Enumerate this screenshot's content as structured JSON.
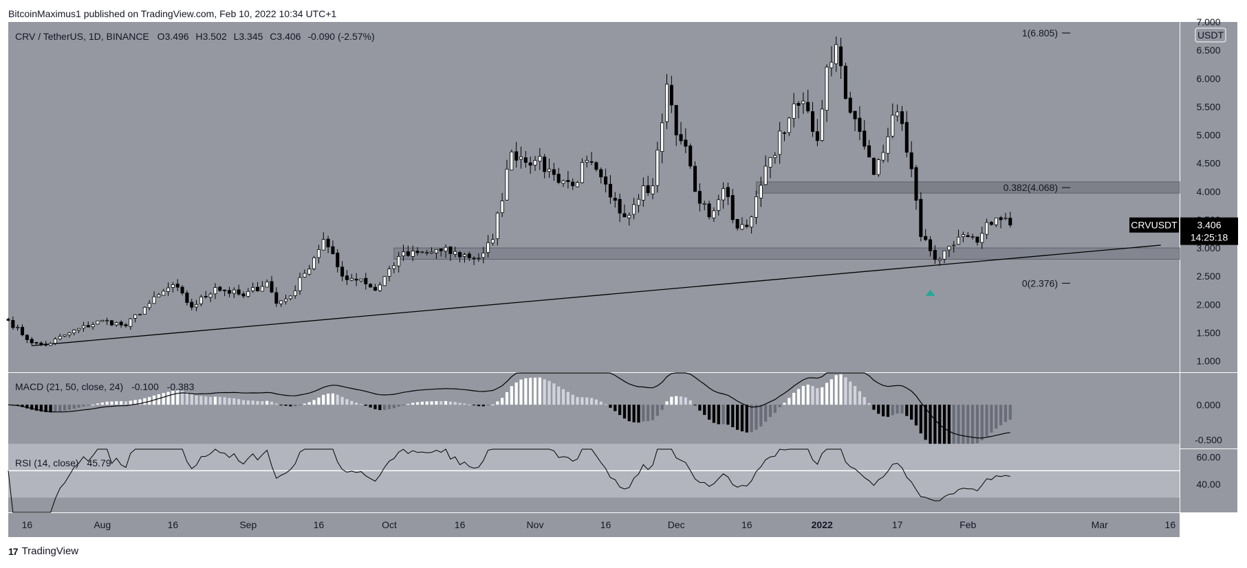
{
  "publisher_line": "BitcoinMaximus1 published on TradingView.com, Feb 10, 2022 10:34 UTC+1",
  "footer_brand": "TradingView",
  "footer_logo": "17",
  "colors": {
    "pane_bg": "#9598a1",
    "rsi_band": "#b2b5be",
    "bull_body": "#ffffff",
    "bear_body": "#000000",
    "wick": "#000000",
    "macd_line": "#000000",
    "hist_up_strong": "#ffffff",
    "hist_up_weak": "#d1d4dc",
    "hist_down_strong": "#000000",
    "hist_down_weak": "#6a6d78",
    "support_band": "#838690",
    "resistance_band": "#7e8089",
    "arrow": "#26a69a",
    "price_tag_bg": "#000000"
  },
  "chart_data": {
    "type": "candlestick",
    "symbol_line": {
      "pair": "CRV / TetherUS, 1D, BINANCE",
      "o_label": "O",
      "o": "3.496",
      "h_label": "H",
      "h": "3.502",
      "l_label": "L",
      "l": "3.345",
      "c_label": "C",
      "c": "3.406",
      "change": "-0.090 (-2.57%)"
    },
    "currency_badge": "USDT",
    "price_tag": {
      "label": "CRVUSDT",
      "value": "3.406",
      "countdown": "14:25:18",
      "price": 3.406
    },
    "y_axis": {
      "min": 0.8,
      "max": 7.0,
      "ticks": [
        "7.000",
        "6.500",
        "6.000",
        "5.500",
        "5.000",
        "4.500",
        "4.000",
        "3.500",
        "3.000",
        "2.500",
        "2.000",
        "1.500",
        "1.000"
      ]
    },
    "x_axis": {
      "start_date": "2021-07-12",
      "end_date": "2022-03-18",
      "labels": [
        {
          "text": "16",
          "date": "2021-07-16"
        },
        {
          "text": "Aug",
          "date": "2021-08-01"
        },
        {
          "text": "16",
          "date": "2021-08-16"
        },
        {
          "text": "Sep",
          "date": "2021-09-01"
        },
        {
          "text": "16",
          "date": "2021-09-16"
        },
        {
          "text": "Oct",
          "date": "2021-10-01"
        },
        {
          "text": "16",
          "date": "2021-10-16"
        },
        {
          "text": "Nov",
          "date": "2021-11-01"
        },
        {
          "text": "16",
          "date": "2021-11-16"
        },
        {
          "text": "Dec",
          "date": "2021-12-01"
        },
        {
          "text": "16",
          "date": "2021-12-16"
        },
        {
          "text": "2022",
          "date": "2022-01-01"
        },
        {
          "text": "17",
          "date": "2022-01-17"
        },
        {
          "text": "Feb",
          "date": "2022-02-01"
        },
        {
          "text": "Mar",
          "date": "2022-03-01"
        },
        {
          "text": "16",
          "date": "2022-03-16"
        }
      ]
    },
    "fib_levels": [
      {
        "label": "1(6.805)",
        "price": 6.805
      },
      {
        "label": "0.382(4.068)",
        "price": 4.068
      },
      {
        "label": "0(2.376)",
        "price": 2.376
      }
    ],
    "zones": [
      {
        "name": "support",
        "from_date": "2021-10-02",
        "to_date": "2022-03-18",
        "low": 2.8,
        "high": 3.0
      },
      {
        "name": "resistance",
        "from_date": "2021-12-18",
        "to_date": "2022-03-18",
        "low": 3.97,
        "high": 4.17
      }
    ],
    "trendline": {
      "from_date": "2021-07-17",
      "from_price": 1.27,
      "to_date": "2022-03-14",
      "to_price": 3.05
    },
    "signal_arrow": {
      "date": "2022-01-24",
      "price": 2.2
    },
    "anchor_closes": [
      [
        "2021-07-12",
        1.72
      ],
      [
        "2021-07-17",
        1.32
      ],
      [
        "2021-07-20",
        1.28
      ],
      [
        "2021-07-25",
        1.5
      ],
      [
        "2021-08-01",
        1.72
      ],
      [
        "2021-08-06",
        1.62
      ],
      [
        "2021-08-10",
        1.95
      ],
      [
        "2021-08-16",
        2.35
      ],
      [
        "2021-08-20",
        1.95
      ],
      [
        "2021-08-25",
        2.3
      ],
      [
        "2021-08-31",
        2.15
      ],
      [
        "2021-09-05",
        2.4
      ],
      [
        "2021-09-07",
        2.02
      ],
      [
        "2021-09-10",
        2.15
      ],
      [
        "2021-09-13",
        2.55
      ],
      [
        "2021-09-17",
        3.15
      ],
      [
        "2021-09-21",
        2.5
      ],
      [
        "2021-09-25",
        2.45
      ],
      [
        "2021-09-28",
        2.25
      ],
      [
        "2021-10-03",
        2.85
      ],
      [
        "2021-10-12",
        2.95
      ],
      [
        "2021-10-20",
        2.82
      ],
      [
        "2021-10-23",
        3.15
      ],
      [
        "2021-10-27",
        4.7
      ],
      [
        "2021-11-01",
        4.55
      ],
      [
        "2021-11-05",
        4.3
      ],
      [
        "2021-11-09",
        4.1
      ],
      [
        "2021-11-12",
        4.55
      ],
      [
        "2021-11-17",
        3.9
      ],
      [
        "2021-11-20",
        3.55
      ],
      [
        "2021-11-24",
        4.1
      ],
      [
        "2021-11-26",
        4.1
      ],
      [
        "2021-11-29",
        5.9
      ],
      [
        "2021-12-01",
        5.0
      ],
      [
        "2021-12-03",
        4.8
      ],
      [
        "2021-12-05",
        4.0
      ],
      [
        "2021-12-08",
        3.55
      ],
      [
        "2021-12-11",
        4.05
      ],
      [
        "2021-12-14",
        3.35
      ],
      [
        "2021-12-17",
        3.55
      ],
      [
        "2021-12-21",
        4.6
      ],
      [
        "2021-12-25",
        5.3
      ],
      [
        "2021-12-28",
        5.6
      ],
      [
        "2021-12-31",
        4.9
      ],
      [
        "2022-01-02",
        6.2
      ],
      [
        "2022-01-04",
        6.6
      ],
      [
        "2022-01-07",
        5.4
      ],
      [
        "2022-01-10",
        4.8
      ],
      [
        "2022-01-12",
        4.3
      ],
      [
        "2022-01-16",
        5.35
      ],
      [
        "2022-01-18",
        5.2
      ],
      [
        "2022-01-20",
        4.4
      ],
      [
        "2022-01-22",
        3.2
      ],
      [
        "2022-01-24",
        2.95
      ],
      [
        "2022-01-26",
        2.8
      ],
      [
        "2022-01-29",
        3.05
      ],
      [
        "2022-02-01",
        3.2
      ],
      [
        "2022-02-03",
        3.1
      ],
      [
        "2022-02-05",
        3.45
      ],
      [
        "2022-02-08",
        3.5
      ],
      [
        "2022-02-10",
        3.406
      ]
    ],
    "macd": {
      "title": "MACD (21, 50, close, 24)",
      "macd_value": "-0.100",
      "signal_value": "-0.383",
      "y_min": -0.62,
      "y_max": 0.45,
      "ticks": [
        "0.000",
        "-0.500"
      ]
    },
    "rsi": {
      "title": "RSI (14, close)",
      "value": "45.79",
      "current": 45.79,
      "y_min": 19,
      "y_max": 66,
      "ticks": [
        "60.00",
        "40.00"
      ],
      "band": [
        30,
        70
      ],
      "midline": 50
    }
  }
}
